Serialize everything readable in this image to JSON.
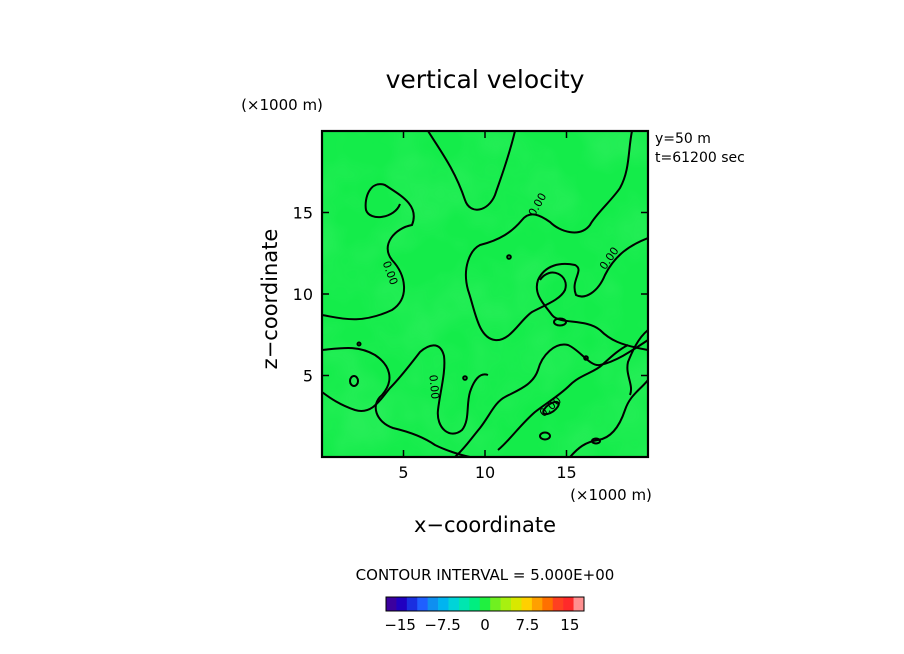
{
  "chart_data": {
    "type": "heatmap",
    "title": "vertical velocity",
    "xlabel": "x−coordinate",
    "ylabel": "z−coordinate",
    "x_unit": "(×1000 m)",
    "y_unit": "(×1000 m)",
    "xlim": [
      0,
      20
    ],
    "ylim": [
      0,
      20
    ],
    "x_ticks": [
      5,
      10,
      15
    ],
    "y_ticks": [
      5,
      10,
      15
    ],
    "x_tick_labels": [
      "5",
      "10",
      "15"
    ],
    "y_tick_labels": [
      "5",
      "10",
      "15"
    ],
    "info_lines": [
      "y=50  m",
      "t=61200 sec"
    ],
    "contour_interval_text": "CONTOUR INTERVAL = 5.000E+00",
    "contour_label": "0.00",
    "contour_label_positions": [
      [
        13.2,
        15.5
      ],
      [
        4.2,
        11.3
      ],
      [
        17.6,
        12.2
      ],
      [
        6.9,
        4.3
      ],
      [
        14.0,
        3.1
      ]
    ],
    "field_value": 0,
    "colorbar": {
      "colors": [
        "#3b009e",
        "#2000c0",
        "#1a2fe0",
        "#1f5fff",
        "#0f8ff0",
        "#00b4f0",
        "#00d4d8",
        "#00e6b0",
        "#00ee80",
        "#20f040",
        "#70f020",
        "#a8f010",
        "#d8e800",
        "#ffd000",
        "#ffa000",
        "#ff7000",
        "#ff4020",
        "#ff2a2a",
        "#ff9090"
      ],
      "vmin": -17.5,
      "vmax": 17.5,
      "ticks": [
        -15,
        -7.5,
        0,
        7.5,
        15
      ],
      "tick_labels": [
        "−15",
        "−7.5",
        "0",
        "7.5",
        "15"
      ]
    }
  }
}
